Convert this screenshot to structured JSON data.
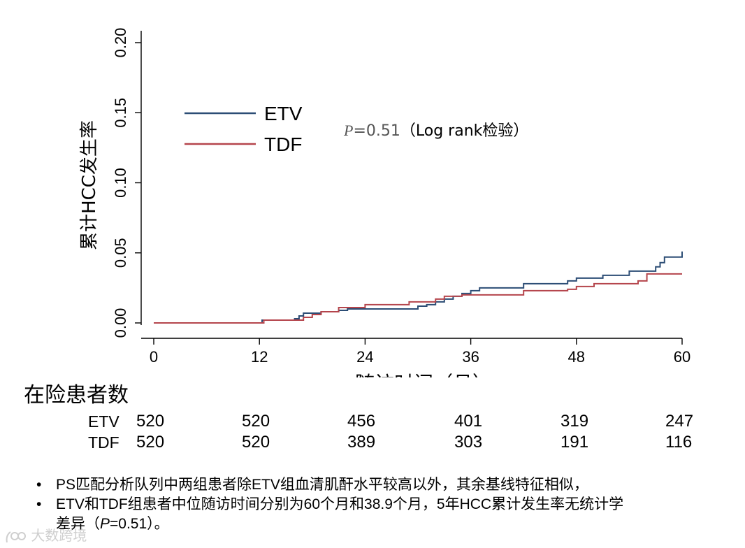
{
  "chart_data": {
    "type": "line",
    "step": true,
    "ylabel": "累计HCC发生率",
    "xlabel": "随访时间（月）",
    "xlim": [
      0,
      60
    ],
    "ylim": [
      0,
      0.2
    ],
    "xticks": [
      0,
      12,
      24,
      36,
      48,
      60
    ],
    "xtick_labels": [
      "0",
      "12",
      "24",
      "36",
      "48",
      "60"
    ],
    "yticks": [
      0,
      0.05,
      0.1,
      0.15,
      0.2
    ],
    "ytick_labels": [
      "0.00",
      "0.05",
      "0.10",
      "0.15",
      "0.20"
    ],
    "legend": "upper-left",
    "annotation": {
      "p_symbol": "P",
      "p_value": "=0.51",
      "test": "（Log rank检验）"
    },
    "series": [
      {
        "name": "ETV",
        "color": "#2c4d75",
        "x": [
          0,
          12.3,
          16,
          16.5,
          17,
          19,
          21,
          22,
          30,
          31,
          32,
          33,
          34,
          35,
          36,
          37,
          42,
          47,
          48,
          51,
          54,
          57,
          57.5,
          58,
          60
        ],
        "y": [
          0,
          0.002,
          0.003,
          0.005,
          0.007,
          0.008,
          0.009,
          0.01,
          0.012,
          0.013,
          0.015,
          0.017,
          0.019,
          0.021,
          0.023,
          0.025,
          0.028,
          0.03,
          0.032,
          0.034,
          0.037,
          0.04,
          0.043,
          0.047,
          0.051
        ]
      },
      {
        "name": "TDF",
        "color": "#b5454c",
        "x": [
          0,
          12.5,
          17,
          18,
          19,
          21,
          24,
          29,
          32,
          33,
          35,
          42,
          47,
          48,
          50,
          55,
          56,
          60
        ],
        "y": [
          0,
          0.002,
          0.004,
          0.006,
          0.008,
          0.011,
          0.013,
          0.015,
          0.017,
          0.019,
          0.02,
          0.023,
          0.024,
          0.026,
          0.028,
          0.03,
          0.035,
          0.035
        ]
      }
    ]
  },
  "risk_table": {
    "title": "在险患者数",
    "rows": [
      {
        "label": "ETV",
        "values": [
          "520",
          "520",
          "456",
          "401",
          "319",
          "247"
        ]
      },
      {
        "label": "TDF",
        "values": [
          "520",
          "520",
          "389",
          "303",
          "191",
          "116"
        ]
      }
    ]
  },
  "notes": {
    "bullet": "•",
    "line1": "PS匹配分析队列中两组患者除ETV组血清肌酐水平较高以外，其余基线特征相似，",
    "line2a": "ETV和TDF组患者中位随访时间分别为60个月和38.9个月，5年HCC累计发生率无统计学",
    "line2b_pre": "差异（",
    "line2b_p": "P",
    "line2b_post": "=0.51）。"
  },
  "watermark": {
    "text": "大数跨境"
  }
}
